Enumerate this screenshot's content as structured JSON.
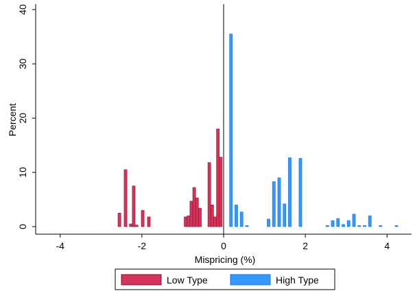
{
  "chart_data": {
    "type": "bar",
    "xlabel": "Mispricing (%)",
    "ylabel": "Percent",
    "xlim": [
      -4.6,
      4.6
    ],
    "ylim": [
      0,
      40
    ],
    "x_ticks": [
      -4,
      -2,
      0,
      2,
      4
    ],
    "y_ticks": [
      0,
      10,
      20,
      30,
      40
    ],
    "bar_width": 0.07,
    "grid": false,
    "legend_position": "bottom-center",
    "colors": {
      "low": "#d6335a",
      "high": "#3399ff",
      "edge": "#7a1530",
      "edge_high": "#1f6fd0"
    },
    "series": [
      {
        "name": "Low Type",
        "color_key": "low",
        "points": [
          {
            "x": -2.55,
            "y": 2.5
          },
          {
            "x": -2.4,
            "y": 10.5
          },
          {
            "x": -2.27,
            "y": 0.5
          },
          {
            "x": -2.2,
            "y": 7.5
          },
          {
            "x": -2.13,
            "y": 0.3
          },
          {
            "x": -1.98,
            "y": 3.0
          },
          {
            "x": -1.83,
            "y": 1.8
          },
          {
            "x": -0.93,
            "y": 1.8
          },
          {
            "x": -0.86,
            "y": 2.0
          },
          {
            "x": -0.79,
            "y": 4.7
          },
          {
            "x": -0.72,
            "y": 7.2
          },
          {
            "x": -0.65,
            "y": 5.3
          },
          {
            "x": -0.58,
            "y": 3.4
          },
          {
            "x": -0.35,
            "y": 11.8
          },
          {
            "x": -0.28,
            "y": 4.0
          },
          {
            "x": -0.21,
            "y": 1.8
          },
          {
            "x": -0.14,
            "y": 18.0
          },
          {
            "x": -0.07,
            "y": 12.8
          }
        ]
      },
      {
        "name": "High Type",
        "color_key": "high",
        "points": [
          {
            "x": 0.18,
            "y": 35.5
          },
          {
            "x": 0.31,
            "y": 4.0
          },
          {
            "x": 0.44,
            "y": 2.7
          },
          {
            "x": 0.57,
            "y": 0.2
          },
          {
            "x": 1.1,
            "y": 1.4
          },
          {
            "x": 1.23,
            "y": 8.3
          },
          {
            "x": 1.36,
            "y": 9.0
          },
          {
            "x": 1.49,
            "y": 4.2
          },
          {
            "x": 1.62,
            "y": 12.7
          },
          {
            "x": 1.88,
            "y": 12.6
          },
          {
            "x": 2.54,
            "y": 0.2
          },
          {
            "x": 2.67,
            "y": 1.1
          },
          {
            "x": 2.8,
            "y": 1.5
          },
          {
            "x": 2.93,
            "y": 0.4
          },
          {
            "x": 3.06,
            "y": 1.1
          },
          {
            "x": 3.19,
            "y": 2.3
          },
          {
            "x": 3.32,
            "y": 0.2
          },
          {
            "x": 3.45,
            "y": 0.2
          },
          {
            "x": 3.58,
            "y": 2.0
          },
          {
            "x": 3.84,
            "y": 0.2
          },
          {
            "x": 4.23,
            "y": 0.2
          }
        ]
      }
    ]
  }
}
